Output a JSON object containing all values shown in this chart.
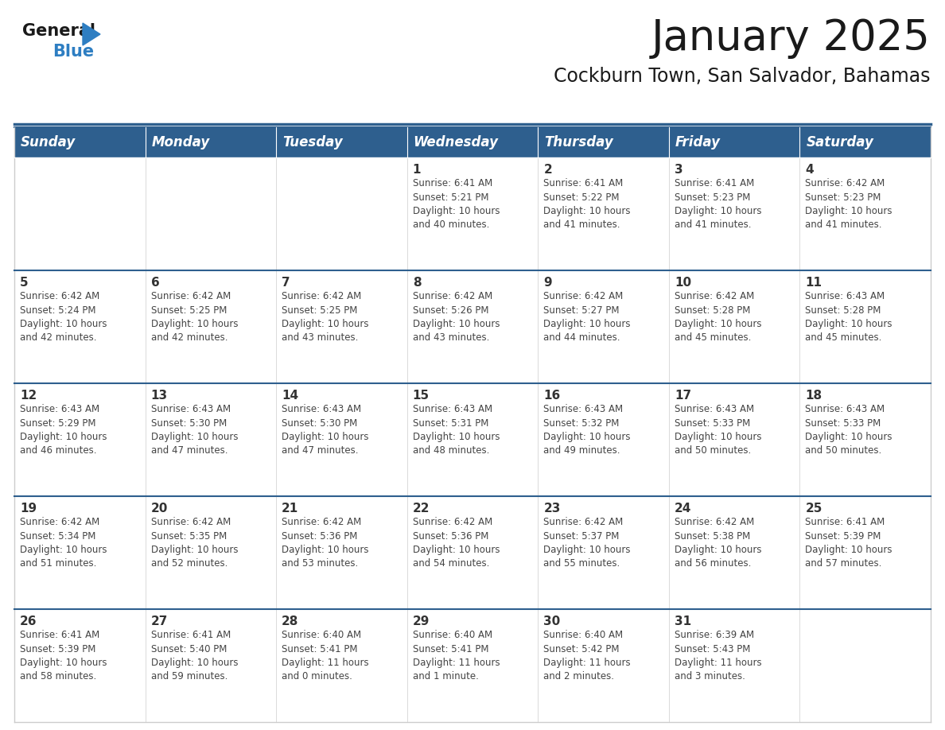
{
  "title": "January 2025",
  "subtitle": "Cockburn Town, San Salvador, Bahamas",
  "days_of_week": [
    "Sunday",
    "Monday",
    "Tuesday",
    "Wednesday",
    "Thursday",
    "Friday",
    "Saturday"
  ],
  "header_bg": "#2E5F8E",
  "header_text": "#FFFFFF",
  "row_bg": "#FFFFFF",
  "cell_border": "#AAAAAA",
  "row_divider": "#2E5F8E",
  "day_num_color": "#333333",
  "text_color": "#444444",
  "title_color": "#1A1A1A",
  "subtitle_color": "#1A1A1A",
  "logo_general_color": "#1A1A1A",
  "logo_blue_color": "#2E7EC2",
  "calendar_data": [
    [
      {
        "day": "",
        "info": ""
      },
      {
        "day": "",
        "info": ""
      },
      {
        "day": "",
        "info": ""
      },
      {
        "day": "1",
        "info": "Sunrise: 6:41 AM\nSunset: 5:21 PM\nDaylight: 10 hours\nand 40 minutes."
      },
      {
        "day": "2",
        "info": "Sunrise: 6:41 AM\nSunset: 5:22 PM\nDaylight: 10 hours\nand 41 minutes."
      },
      {
        "day": "3",
        "info": "Sunrise: 6:41 AM\nSunset: 5:23 PM\nDaylight: 10 hours\nand 41 minutes."
      },
      {
        "day": "4",
        "info": "Sunrise: 6:42 AM\nSunset: 5:23 PM\nDaylight: 10 hours\nand 41 minutes."
      }
    ],
    [
      {
        "day": "5",
        "info": "Sunrise: 6:42 AM\nSunset: 5:24 PM\nDaylight: 10 hours\nand 42 minutes."
      },
      {
        "day": "6",
        "info": "Sunrise: 6:42 AM\nSunset: 5:25 PM\nDaylight: 10 hours\nand 42 minutes."
      },
      {
        "day": "7",
        "info": "Sunrise: 6:42 AM\nSunset: 5:25 PM\nDaylight: 10 hours\nand 43 minutes."
      },
      {
        "day": "8",
        "info": "Sunrise: 6:42 AM\nSunset: 5:26 PM\nDaylight: 10 hours\nand 43 minutes."
      },
      {
        "day": "9",
        "info": "Sunrise: 6:42 AM\nSunset: 5:27 PM\nDaylight: 10 hours\nand 44 minutes."
      },
      {
        "day": "10",
        "info": "Sunrise: 6:42 AM\nSunset: 5:28 PM\nDaylight: 10 hours\nand 45 minutes."
      },
      {
        "day": "11",
        "info": "Sunrise: 6:43 AM\nSunset: 5:28 PM\nDaylight: 10 hours\nand 45 minutes."
      }
    ],
    [
      {
        "day": "12",
        "info": "Sunrise: 6:43 AM\nSunset: 5:29 PM\nDaylight: 10 hours\nand 46 minutes."
      },
      {
        "day": "13",
        "info": "Sunrise: 6:43 AM\nSunset: 5:30 PM\nDaylight: 10 hours\nand 47 minutes."
      },
      {
        "day": "14",
        "info": "Sunrise: 6:43 AM\nSunset: 5:30 PM\nDaylight: 10 hours\nand 47 minutes."
      },
      {
        "day": "15",
        "info": "Sunrise: 6:43 AM\nSunset: 5:31 PM\nDaylight: 10 hours\nand 48 minutes."
      },
      {
        "day": "16",
        "info": "Sunrise: 6:43 AM\nSunset: 5:32 PM\nDaylight: 10 hours\nand 49 minutes."
      },
      {
        "day": "17",
        "info": "Sunrise: 6:43 AM\nSunset: 5:33 PM\nDaylight: 10 hours\nand 50 minutes."
      },
      {
        "day": "18",
        "info": "Sunrise: 6:43 AM\nSunset: 5:33 PM\nDaylight: 10 hours\nand 50 minutes."
      }
    ],
    [
      {
        "day": "19",
        "info": "Sunrise: 6:42 AM\nSunset: 5:34 PM\nDaylight: 10 hours\nand 51 minutes."
      },
      {
        "day": "20",
        "info": "Sunrise: 6:42 AM\nSunset: 5:35 PM\nDaylight: 10 hours\nand 52 minutes."
      },
      {
        "day": "21",
        "info": "Sunrise: 6:42 AM\nSunset: 5:36 PM\nDaylight: 10 hours\nand 53 minutes."
      },
      {
        "day": "22",
        "info": "Sunrise: 6:42 AM\nSunset: 5:36 PM\nDaylight: 10 hours\nand 54 minutes."
      },
      {
        "day": "23",
        "info": "Sunrise: 6:42 AM\nSunset: 5:37 PM\nDaylight: 10 hours\nand 55 minutes."
      },
      {
        "day": "24",
        "info": "Sunrise: 6:42 AM\nSunset: 5:38 PM\nDaylight: 10 hours\nand 56 minutes."
      },
      {
        "day": "25",
        "info": "Sunrise: 6:41 AM\nSunset: 5:39 PM\nDaylight: 10 hours\nand 57 minutes."
      }
    ],
    [
      {
        "day": "26",
        "info": "Sunrise: 6:41 AM\nSunset: 5:39 PM\nDaylight: 10 hours\nand 58 minutes."
      },
      {
        "day": "27",
        "info": "Sunrise: 6:41 AM\nSunset: 5:40 PM\nDaylight: 10 hours\nand 59 minutes."
      },
      {
        "day": "28",
        "info": "Sunrise: 6:40 AM\nSunset: 5:41 PM\nDaylight: 11 hours\nand 0 minutes."
      },
      {
        "day": "29",
        "info": "Sunrise: 6:40 AM\nSunset: 5:41 PM\nDaylight: 11 hours\nand 1 minute."
      },
      {
        "day": "30",
        "info": "Sunrise: 6:40 AM\nSunset: 5:42 PM\nDaylight: 11 hours\nand 2 minutes."
      },
      {
        "day": "31",
        "info": "Sunrise: 6:39 AM\nSunset: 5:43 PM\nDaylight: 11 hours\nand 3 minutes."
      },
      {
        "day": "",
        "info": ""
      }
    ]
  ]
}
